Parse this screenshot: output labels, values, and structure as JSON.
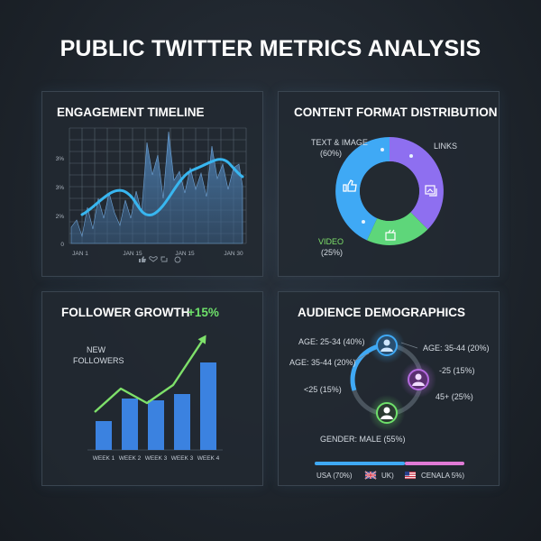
{
  "page_title": "PUBLIC TWITTER METRICS ANALYSIS",
  "engagement": {
    "title": "ENGAGEMENT TIMELINE",
    "y_ticks": [
      "3%",
      "3%",
      "2%",
      "0"
    ],
    "x_ticks": [
      "JAN 1",
      "JAN 15",
      "JAN 15",
      "JAN 30"
    ],
    "icons": [
      "thumbs-up-icon",
      "heart-icon",
      "retweet-icon",
      "reply-icon"
    ]
  },
  "content_format": {
    "title": "CONTENT FORMAT DISTRIBUTION",
    "labels": {
      "text_image": "TEXT & IMAGE",
      "text_image_pct": "(60%)",
      "links": "LINKS",
      "video": "VIDEO",
      "video_pct": "(25%)"
    },
    "colors": {
      "text_image": "#3fa9f5",
      "links": "#8e6ff0",
      "video": "#5ed67a"
    }
  },
  "followers": {
    "title": "FOLLOWER GROWTH",
    "growth": "+15%",
    "annotation_line1": "NEW",
    "annotation_line2": "FOLLOWERS",
    "weeks": [
      "WEEK 1",
      "WEEK 2",
      "WEEK 3",
      "WEEK 3",
      "WEEK 4"
    ],
    "bar_values": [
      32,
      57,
      55,
      62,
      97
    ],
    "trend_values": [
      42,
      68,
      52,
      72,
      125
    ],
    "colors": {
      "bar": "#3b82e0",
      "trend": "#7ee06a",
      "growth": "#6ee06a"
    }
  },
  "demographics": {
    "title": "AUDIENCE DEMOGRAPHICS",
    "labels": {
      "age_25_34": "AGE: 25-34 (40%)",
      "age_35_44_right": "AGE: 35-44 (20%)",
      "age_35_44_left": "AGE: 35-44 (20%)",
      "under25_right": "-25 (15%)",
      "under25_left": "<25 (15%)",
      "age_45_plus": "45+ (25%)",
      "gender": "GENDER: MALE (55%)"
    },
    "legend": {
      "usa": "USA (70%)",
      "uk": "UK)",
      "other": "CENALA 5%)"
    }
  }
}
